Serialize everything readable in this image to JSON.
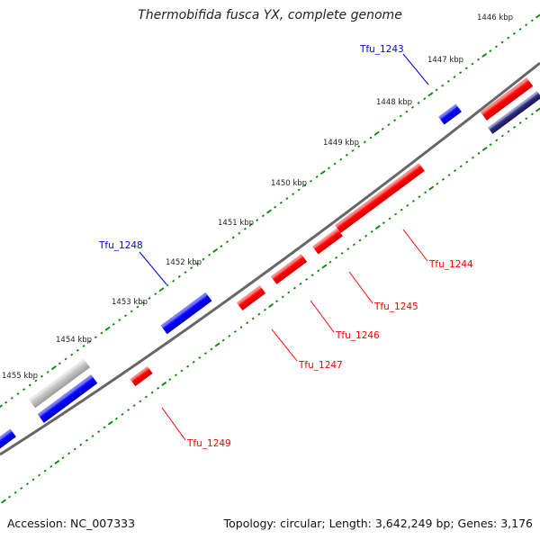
{
  "title": "Thermobifida fusca YX, complete genome",
  "footer": {
    "accession": "Accession: NC_007333",
    "summary": "Topology: circular; Length: 3,642,249 bp; Genes: 3,176"
  },
  "colors": {
    "forward": "#ff0000",
    "reverse": "#0000ff",
    "backbone": "#666666",
    "tick": "#008800",
    "unknown": "#aaaaaa",
    "dark": "#222266"
  },
  "ticks": [
    {
      "label": "1446 kbp"
    },
    {
      "label": "1447 kbp"
    },
    {
      "label": "1448 kbp"
    },
    {
      "label": "1449 kbp"
    },
    {
      "label": "1450 kbp"
    },
    {
      "label": "1451 kbp"
    },
    {
      "label": "1452 kbp"
    },
    {
      "label": "1453 kbp"
    },
    {
      "label": "1454 kbp"
    },
    {
      "label": "1455 kbp"
    }
  ],
  "genes": [
    {
      "name": "Tfu_1243",
      "strand": "reverse"
    },
    {
      "name": "Tfu_1244",
      "strand": "forward"
    },
    {
      "name": "Tfu_1245",
      "strand": "forward"
    },
    {
      "name": "Tfu_1246",
      "strand": "forward"
    },
    {
      "name": "Tfu_1247",
      "strand": "forward"
    },
    {
      "name": "Tfu_1248",
      "strand": "reverse"
    },
    {
      "name": "Tfu_1249",
      "strand": "forward"
    }
  ]
}
